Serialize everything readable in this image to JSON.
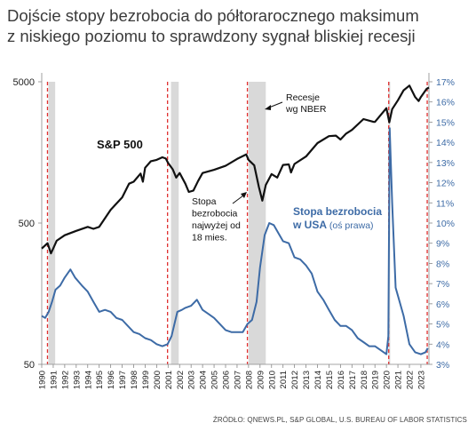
{
  "title_lines": [
    "Dojście stopy bezrobocia do półtorarocznego maksimum",
    "z niskiego poziomu to sprawdzony sygnał bliskiej recesji"
  ],
  "source": "ŹRÓDŁO: QNEWS.PL, S&P GLOBAL, U.S. BUREAU OF LABOR STATISTICS",
  "colors": {
    "sp500": "#111111",
    "unemployment": "#3d6ba6",
    "recession": "#d9d9d9",
    "signal": "#e03030",
    "right_axis": "#3d6ba6"
  },
  "chart_data": {
    "type": "line",
    "x_range": [
      1990,
      2023.7
    ],
    "x_ticks": [
      "1990",
      "1991",
      "1992",
      "1993",
      "1994",
      "1995",
      "1996",
      "1997",
      "1998",
      "1999",
      "2000",
      "2001",
      "2002",
      "2003",
      "2004",
      "2005",
      "2006",
      "2007",
      "2008",
      "2009",
      "2010",
      "2011",
      "2012",
      "2013",
      "2014",
      "2015",
      "2016",
      "2017",
      "2018",
      "2019",
      "2020",
      "2021",
      "2022",
      "2023"
    ],
    "left_axis": {
      "scale": "log",
      "range": [
        50,
        5000
      ],
      "ticks": [
        "50",
        "500",
        "5000"
      ]
    },
    "right_axis": {
      "range": [
        3,
        17
      ],
      "ticks": [
        "3%",
        "4%",
        "5%",
        "6%",
        "7%",
        "8%",
        "9%",
        "10%",
        "11%",
        "12%",
        "13%",
        "14%",
        "15%",
        "16%",
        "17%"
      ]
    },
    "recessions": [
      [
        1990.58,
        1991.17
      ],
      [
        2001.25,
        2001.92
      ],
      [
        2008.0,
        2009.5
      ],
      [
        2020.17,
        2020.33
      ]
    ],
    "signal_lines": [
      1990.5,
      2000.95,
      2007.9,
      2020.2,
      2023.55
    ],
    "series": [
      {
        "name": "S&P 500",
        "axis": "left",
        "points": [
          [
            1990.0,
            330
          ],
          [
            1990.5,
            360
          ],
          [
            1990.8,
            305
          ],
          [
            1991.0,
            330
          ],
          [
            1991.3,
            375
          ],
          [
            1992.0,
            410
          ],
          [
            1993.0,
            440
          ],
          [
            1994.0,
            470
          ],
          [
            1994.5,
            455
          ],
          [
            1995.0,
            470
          ],
          [
            1996.0,
            620
          ],
          [
            1997.0,
            760
          ],
          [
            1997.6,
            950
          ],
          [
            1998.0,
            980
          ],
          [
            1998.6,
            1120
          ],
          [
            1998.8,
            980
          ],
          [
            1999.0,
            1230
          ],
          [
            1999.5,
            1370
          ],
          [
            2000.0,
            1400
          ],
          [
            2000.5,
            1460
          ],
          [
            2000.8,
            1430
          ],
          [
            2001.0,
            1330
          ],
          [
            2001.4,
            1200
          ],
          [
            2001.7,
            1050
          ],
          [
            2002.0,
            1130
          ],
          [
            2002.5,
            950
          ],
          [
            2002.8,
            830
          ],
          [
            2003.2,
            850
          ],
          [
            2003.6,
            990
          ],
          [
            2004.0,
            1130
          ],
          [
            2005.0,
            1190
          ],
          [
            2006.0,
            1270
          ],
          [
            2007.0,
            1420
          ],
          [
            2007.8,
            1530
          ],
          [
            2008.0,
            1400
          ],
          [
            2008.5,
            1280
          ],
          [
            2008.9,
            900
          ],
          [
            2009.2,
            720
          ],
          [
            2009.5,
            930
          ],
          [
            2010.0,
            1110
          ],
          [
            2010.5,
            1050
          ],
          [
            2011.0,
            1290
          ],
          [
            2011.5,
            1300
          ],
          [
            2011.7,
            1140
          ],
          [
            2012.0,
            1310
          ],
          [
            2013.0,
            1480
          ],
          [
            2014.0,
            1840
          ],
          [
            2015.0,
            2060
          ],
          [
            2015.6,
            2080
          ],
          [
            2016.0,
            1950
          ],
          [
            2016.5,
            2150
          ],
          [
            2017.0,
            2280
          ],
          [
            2018.0,
            2720
          ],
          [
            2018.9,
            2600
          ],
          [
            2019.0,
            2600
          ],
          [
            2020.0,
            3250
          ],
          [
            2020.25,
            2580
          ],
          [
            2020.5,
            3200
          ],
          [
            2021.0,
            3700
          ],
          [
            2021.5,
            4350
          ],
          [
            2022.0,
            4700
          ],
          [
            2022.5,
            3900
          ],
          [
            2022.8,
            3650
          ],
          [
            2023.0,
            3900
          ],
          [
            2023.5,
            4450
          ],
          [
            2023.7,
            4550
          ]
        ]
      },
      {
        "name": "Stopa bezrobocia w USA",
        "axis": "right",
        "points": [
          [
            1990.0,
            5.4
          ],
          [
            1990.3,
            5.3
          ],
          [
            1990.6,
            5.6
          ],
          [
            1990.9,
            6.1
          ],
          [
            1991.2,
            6.7
          ],
          [
            1991.6,
            6.9
          ],
          [
            1992.0,
            7.3
          ],
          [
            1992.5,
            7.7
          ],
          [
            1992.9,
            7.3
          ],
          [
            1993.5,
            6.9
          ],
          [
            1994.0,
            6.6
          ],
          [
            1994.5,
            6.1
          ],
          [
            1995.0,
            5.6
          ],
          [
            1995.5,
            5.7
          ],
          [
            1996.0,
            5.6
          ],
          [
            1996.5,
            5.3
          ],
          [
            1997.0,
            5.2
          ],
          [
            1997.5,
            4.9
          ],
          [
            1998.0,
            4.6
          ],
          [
            1998.5,
            4.5
          ],
          [
            1999.0,
            4.3
          ],
          [
            1999.5,
            4.2
          ],
          [
            2000.0,
            4.0
          ],
          [
            2000.5,
            3.9
          ],
          [
            2000.95,
            4.0
          ],
          [
            2001.3,
            4.4
          ],
          [
            2001.8,
            5.6
          ],
          [
            2002.2,
            5.7
          ],
          [
            2002.5,
            5.8
          ],
          [
            2003.0,
            5.9
          ],
          [
            2003.5,
            6.2
          ],
          [
            2004.0,
            5.7
          ],
          [
            2004.5,
            5.5
          ],
          [
            2005.0,
            5.3
          ],
          [
            2005.5,
            5.0
          ],
          [
            2006.0,
            4.7
          ],
          [
            2006.5,
            4.6
          ],
          [
            2007.0,
            4.6
          ],
          [
            2007.5,
            4.6
          ],
          [
            2007.9,
            5.0
          ],
          [
            2008.3,
            5.2
          ],
          [
            2008.7,
            6.1
          ],
          [
            2009.0,
            7.8
          ],
          [
            2009.4,
            9.4
          ],
          [
            2009.8,
            10.0
          ],
          [
            2010.2,
            9.9
          ],
          [
            2010.6,
            9.5
          ],
          [
            2011.0,
            9.1
          ],
          [
            2011.5,
            9.0
          ],
          [
            2012.0,
            8.3
          ],
          [
            2012.5,
            8.2
          ],
          [
            2013.0,
            7.9
          ],
          [
            2013.5,
            7.5
          ],
          [
            2014.0,
            6.6
          ],
          [
            2014.5,
            6.2
          ],
          [
            2015.0,
            5.7
          ],
          [
            2015.5,
            5.2
          ],
          [
            2016.0,
            4.9
          ],
          [
            2016.5,
            4.9
          ],
          [
            2017.0,
            4.7
          ],
          [
            2017.5,
            4.3
          ],
          [
            2018.0,
            4.1
          ],
          [
            2018.5,
            3.9
          ],
          [
            2019.0,
            3.9
          ],
          [
            2019.5,
            3.7
          ],
          [
            2020.0,
            3.5
          ],
          [
            2020.17,
            4.4
          ],
          [
            2020.28,
            14.7
          ],
          [
            2020.5,
            11.0
          ],
          [
            2020.8,
            6.8
          ],
          [
            2021.0,
            6.4
          ],
          [
            2021.5,
            5.4
          ],
          [
            2022.0,
            4.0
          ],
          [
            2022.5,
            3.6
          ],
          [
            2023.0,
            3.5
          ],
          [
            2023.4,
            3.6
          ],
          [
            2023.6,
            3.8
          ]
        ]
      }
    ],
    "annotations": [
      {
        "id": "sp500",
        "text": "S&P 500"
      },
      {
        "id": "recession",
        "lines": [
          "Recesje",
          "wg NBER"
        ]
      },
      {
        "id": "signal",
        "lines": [
          "Stopa",
          "bezrobocia",
          "najwyżej od",
          "18 mies."
        ]
      },
      {
        "id": "unemp_bold",
        "lines": [
          "Stopa bezrobocia",
          "w USA"
        ]
      },
      {
        "id": "unemp_note",
        "text": " (oś prawa)"
      }
    ]
  }
}
